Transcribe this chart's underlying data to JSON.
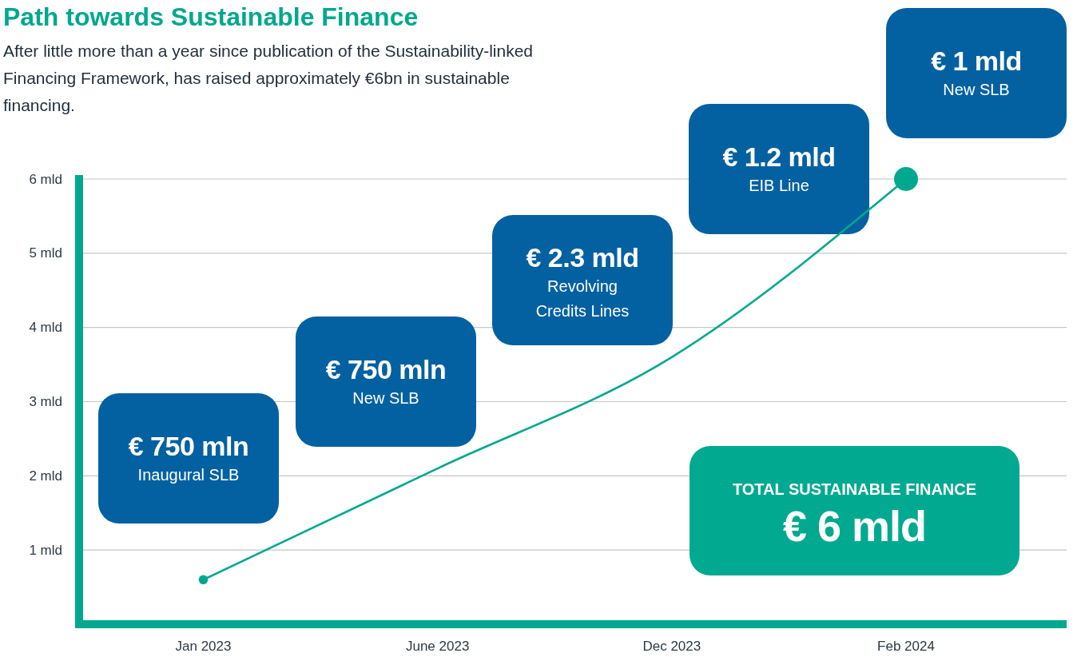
{
  "chart_data": {
    "type": "line",
    "title": "Path towards Sustainable Finance",
    "subtitle": "After little more than a year since publication of the Sustainability-linked Financing Framework, has raised approximately €6bn in sustainable financing.",
    "annotations": [
      "€ 750 mln\nInaugural SLB",
      "€ 750 mln\nNew SLB",
      "€ 2.3 mld\nRevolving\nCredits Lines",
      "€ 1.2 mld\nEIB Line",
      "€ 1 mld\nNew SLB",
      "TOTAL SUSTAINABLE FINANCE\n€ 6 mld"
    ],
    "categories": [
      "Jan 2023",
      "June 2023",
      "Dec 2023",
      "Feb 2024"
    ],
    "ylim": [
      0,
      6
    ],
    "yticks": [
      {
        "value": 1,
        "label": "1 mld"
      },
      {
        "value": 2,
        "label": "2 mld"
      },
      {
        "value": 3,
        "label": "3 mld"
      },
      {
        "value": 4,
        "label": "4 mld"
      },
      {
        "value": 5,
        "label": "5 mld"
      },
      {
        "value": 6,
        "label": "6 mld"
      }
    ],
    "grid": "y",
    "series": [
      {
        "color": "#00a88e",
        "values": [
          0.6,
          2.1,
          3.6,
          6
        ]
      },
      {
        "type": "bubble",
        "color": "#00a88e",
        "values": [
          0.6,
          null,
          null,
          6
        ],
        "sizes": [
          0.15,
          null,
          null,
          1
        ]
      }
    ]
  }
}
